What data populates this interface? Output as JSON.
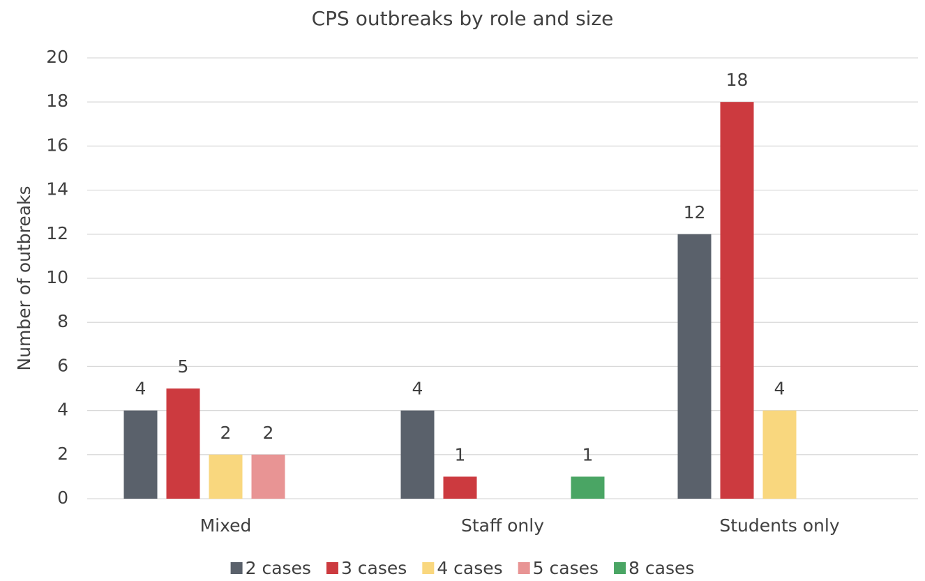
{
  "chart_data": {
    "type": "bar",
    "title": "CPS outbreaks by role and size",
    "ylabel": "Number of outbreaks",
    "categories": [
      "Mixed",
      "Staff only",
      "Students only"
    ],
    "series": [
      {
        "name": "2 cases",
        "color": "#5a616b",
        "values": [
          4,
          4,
          12
        ]
      },
      {
        "name": "3 cases",
        "color": "#cc3a3f",
        "values": [
          5,
          1,
          18
        ]
      },
      {
        "name": "4 cases",
        "color": "#f9d77e",
        "values": [
          2,
          null,
          4
        ]
      },
      {
        "name": "5 cases",
        "color": "#e89494",
        "values": [
          2,
          null,
          null
        ]
      },
      {
        "name": "8 cases",
        "color": "#4aa564",
        "values": [
          null,
          1,
          null
        ]
      }
    ],
    "ylim": [
      0,
      20
    ],
    "yticks": [
      0,
      2,
      4,
      6,
      8,
      10,
      12,
      14,
      16,
      18,
      20
    ],
    "grid": true,
    "legend": "bottom"
  }
}
